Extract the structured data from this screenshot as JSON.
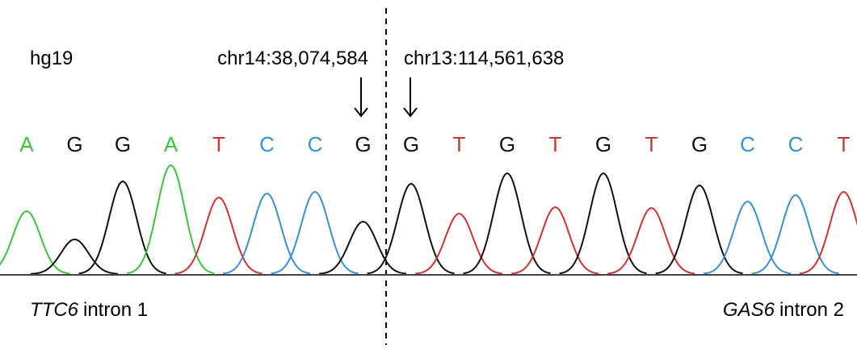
{
  "genome": "hg19",
  "breakpoints": {
    "left": "chr14:38,074,584",
    "right": "chr13:114,561,638"
  },
  "bases": [
    "A",
    "G",
    "G",
    "A",
    "T",
    "C",
    "C",
    "G",
    "G",
    "T",
    "G",
    "T",
    "G",
    "T",
    "G",
    "C",
    "C",
    "T"
  ],
  "base_colors": {
    "A": "#3cc43c",
    "G": "#111111",
    "T": "#cc3333",
    "C": "#3a8fd0"
  },
  "regions": {
    "left": {
      "gene": "TTC6",
      "text": "intron 1"
    },
    "right": {
      "gene": "GAS6",
      "text": "intron 2"
    }
  }
}
